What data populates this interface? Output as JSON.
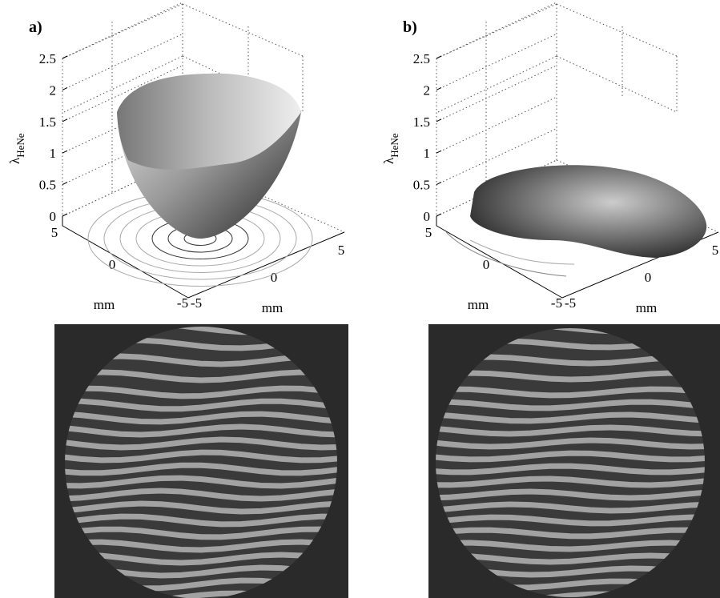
{
  "panels": [
    {
      "label": "a)",
      "zticks": [
        0,
        0.5,
        1,
        1.5,
        2,
        2.5
      ],
      "zlabel": {
        "symbol": "λ",
        "subscript": "HeNe"
      },
      "yticks": [
        5,
        0,
        -5
      ],
      "ylabel": "mm",
      "xticks": [
        -5,
        0,
        5
      ],
      "xlabel": "mm"
    },
    {
      "label": "b)",
      "zticks": [
        0,
        0.5,
        1,
        1.5,
        2,
        2.5
      ],
      "zlabel": {
        "symbol": "λ",
        "subscript": "HeNe"
      },
      "yticks": [
        5,
        0,
        -5
      ],
      "ylabel": "mm",
      "xticks": [
        -5,
        0,
        5
      ],
      "xlabel": "mm"
    }
  ]
}
